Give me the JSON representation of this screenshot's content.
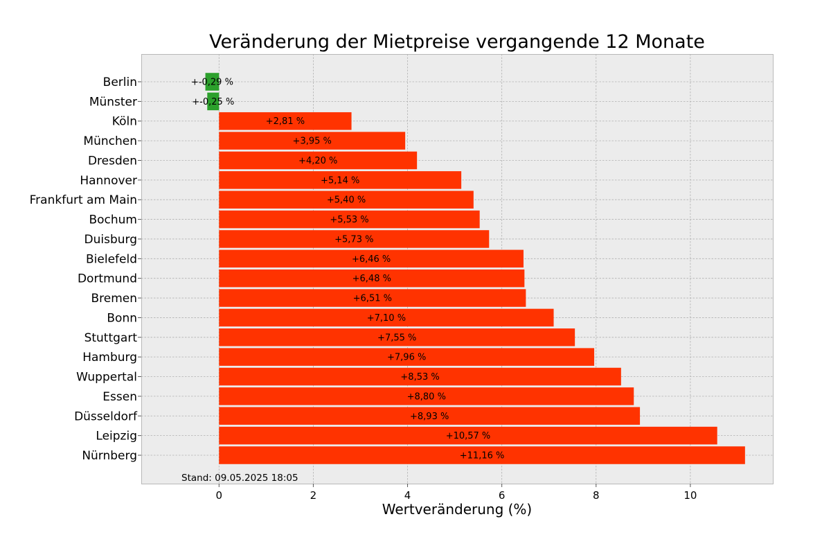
{
  "chart_data": {
    "type": "bar",
    "orientation": "horizontal",
    "title": "Veränderung der Mietpreise vergangende 12 Monate",
    "xlabel": "Wertveränderung (%)",
    "ylabel": "",
    "xlim": [
      -1.65,
      11.75
    ],
    "xticks": [
      0,
      2,
      4,
      6,
      8,
      10
    ],
    "grid": true,
    "footnote": "Stand: 09.05.2025 18:05",
    "colors": {
      "negative": "#2ca02c",
      "positive": "#ff3300",
      "background": "#ececec",
      "grid": "#b0b0b0"
    },
    "categories": [
      "Berlin",
      "Münster",
      "Köln",
      "München",
      "Dresden",
      "Hannover",
      "Frankfurt am Main",
      "Bochum",
      "Duisburg",
      "Bielefeld",
      "Dortmund",
      "Bremen",
      "Bonn",
      "Stuttgart",
      "Hamburg",
      "Wuppertal",
      "Essen",
      "Düsseldorf",
      "Leipzig",
      "Nürnberg"
    ],
    "values": [
      -0.29,
      -0.25,
      2.81,
      3.95,
      4.2,
      5.14,
      5.4,
      5.53,
      5.73,
      6.46,
      6.48,
      6.51,
      7.1,
      7.55,
      7.96,
      8.53,
      8.8,
      8.93,
      10.57,
      11.16
    ],
    "labels": [
      "+-0,29 %",
      "+-0,25 %",
      "+2,81 %",
      "+3,95 %",
      "+4,20 %",
      "+5,14 %",
      "+5,40 %",
      "+5,53 %",
      "+5,73 %",
      "+6,46 %",
      "+6,48 %",
      "+6,51 %",
      "+7,10 %",
      "+7,55 %",
      "+7,96 %",
      "+8,53 %",
      "+8,80 %",
      "+8,93 %",
      "+10,57 %",
      "+11,16 %"
    ]
  }
}
